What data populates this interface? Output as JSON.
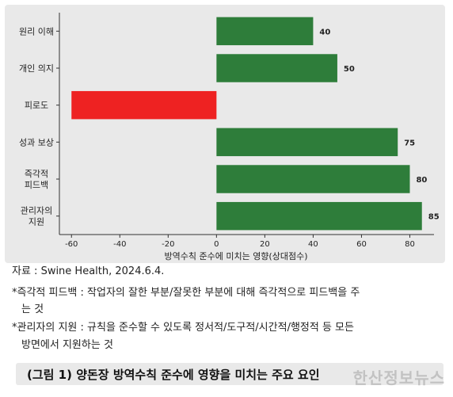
{
  "chart_data": {
    "type": "bar",
    "orientation": "horizontal",
    "categories": [
      [
        "원리 이해"
      ],
      [
        "개인 의지"
      ],
      [
        "피로도"
      ],
      [
        "성과 보상"
      ],
      [
        "즉각적",
        "피드백"
      ],
      [
        "관리자의",
        "지원"
      ]
    ],
    "values": [
      40,
      50,
      -60,
      75,
      80,
      85
    ],
    "data_labels": [
      "40",
      "50",
      "",
      "75",
      "80",
      "85"
    ],
    "colors": [
      "#2e7d3a",
      "#2e7d3a",
      "#ee2222",
      "#2e7d3a",
      "#2e7d3a",
      "#2e7d3a"
    ],
    "xlabel": "방역수칙 준수에 미치는 영향(상대점수)",
    "xlim": [
      -65,
      90
    ],
    "xticks": [
      -60,
      -40,
      -20,
      0,
      20,
      40,
      60,
      80
    ],
    "grid": false
  },
  "notes": {
    "source": "자료 : Swine Health, 2024.6.4.",
    "note1_line1": "*즉각적 피드백 : 작업자의 잘한 부분/잘못한 부분에 대해 즉각적으로 피드백을 주",
    "note1_line2": "는 것",
    "note2_line1": "*관리자의 지원 : 규칙을 준수할 수 있도록 정서적/도구적/시간적/행정적 등 모든",
    "note2_line2": "방면에서 지원하는 것"
  },
  "caption": "(그림 1) 양돈장 방역수칙 준수에 영향을 미치는 주요 요인",
  "watermark": "한산정보뉴스"
}
